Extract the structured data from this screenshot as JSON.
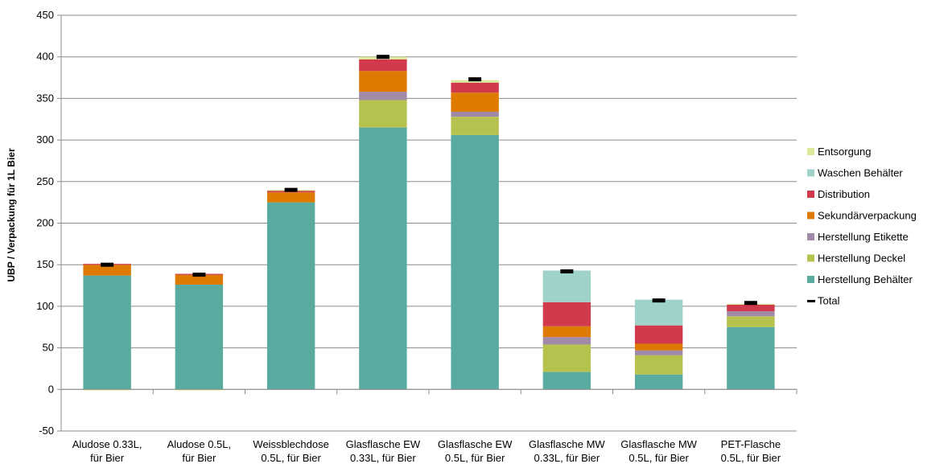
{
  "chart_data": {
    "type": "bar",
    "stacked": true,
    "ylabel": "UBP / Verpackung für 1L Bier",
    "ylim": [
      -50,
      450
    ],
    "y_ticks": [
      -50,
      0,
      50,
      100,
      150,
      200,
      250,
      300,
      350,
      400,
      450
    ],
    "grid": true,
    "legend_position": "right",
    "categories": [
      [
        "Aludose 0.33L,",
        "für Bier"
      ],
      [
        "Aludose 0.5L,",
        "für Bier"
      ],
      [
        "Weissblechdose",
        "0.5L, für Bier"
      ],
      [
        "Glasflasche EW",
        "0.33L, für Bier"
      ],
      [
        "Glasflasche EW",
        "0.5L, für Bier"
      ],
      [
        "Glasflasche MW",
        "0.33L, für Bier"
      ],
      [
        "Glasflasche MW",
        "0.5L, für Bier"
      ],
      [
        "PET-Flasche",
        "0.5L, für Bier"
      ]
    ],
    "series": [
      {
        "name": "Herstellung Behälter",
        "color": "#5aab9f",
        "values": [
          137,
          126,
          225,
          315,
          306,
          21,
          18,
          75
        ]
      },
      {
        "name": "Herstellung Deckel",
        "color": "#b5c24e",
        "values": [
          0,
          0,
          0,
          33,
          22,
          33,
          23,
          13
        ]
      },
      {
        "name": "Herstellung Etikette",
        "color": "#a08aa8",
        "values": [
          0,
          0,
          0,
          10,
          6,
          9,
          6,
          6
        ]
      },
      {
        "name": "Sekundärverpackung",
        "color": "#de7a00",
        "values": [
          13,
          12,
          12,
          25,
          23,
          13,
          8,
          0
        ]
      },
      {
        "name": "Distribution",
        "color": "#d03a4c",
        "values": [
          1,
          1,
          2,
          14,
          12,
          29,
          22,
          8
        ]
      },
      {
        "name": "Waschen Behälter",
        "color": "#9fd3ca",
        "values": [
          0,
          0,
          0,
          0,
          0,
          38,
          31,
          0
        ]
      },
      {
        "name": "Entsorgung",
        "color": "#dde89a",
        "values": [
          -1,
          -1,
          1,
          3,
          3,
          0,
          0,
          1
        ]
      }
    ],
    "total": {
      "name": "Total",
      "color": "#000000",
      "values": [
        150,
        138,
        240,
        400,
        373,
        142,
        107,
        104
      ]
    }
  }
}
